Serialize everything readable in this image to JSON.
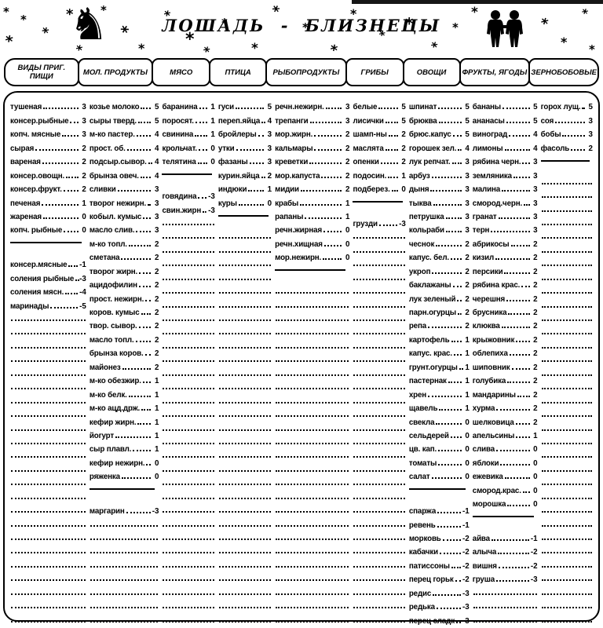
{
  "title": "ЛОШАДЬ - БЛИЗНЕЦЫ",
  "decor": {
    "star_glyph": "*",
    "horse_glyph": "♞"
  },
  "total_rows": 38,
  "columns": [
    {
      "header": "ВИДЫ ПРИГ. ПИЩИ",
      "rows": [
        {
          "name": "тушеная",
          "value": "3"
        },
        {
          "name": "консер.рыбные",
          "value": "3"
        },
        {
          "name": "копч. мясные",
          "value": "3"
        },
        {
          "name": "сырая",
          "value": "2"
        },
        {
          "name": "вареная",
          "value": "2"
        },
        {
          "name": "консер.овощн.",
          "value": "2"
        },
        {
          "name": "консер.фрукт.",
          "value": "2"
        },
        {
          "name": "печеная",
          "value": "1"
        },
        {
          "name": "жареная",
          "value": "0"
        },
        {
          "name": "копч. рыбные",
          "value": "0"
        },
        {
          "divider": true
        },
        {
          "name": "консер.мясные",
          "value": "-1"
        },
        {
          "name": "соления рыбные",
          "value": "-3"
        },
        {
          "name": "соления мясн.",
          "value": "-4"
        },
        {
          "name": "маринады",
          "value": "-5"
        }
      ]
    },
    {
      "header": "МОЛ. ПРОДУКТЫ",
      "rows": [
        {
          "name": "козье молоко",
          "value": "5"
        },
        {
          "name": "сыры тверд.",
          "value": "5"
        },
        {
          "name": "м-ко пастер.",
          "value": "4"
        },
        {
          "name": "прост. об.",
          "value": "4"
        },
        {
          "name": "подсыр.сывор.",
          "value": "4"
        },
        {
          "name": "брынза овеч.",
          "value": "4"
        },
        {
          "name": "сливки",
          "value": "3"
        },
        {
          "name": "творог нежирн.",
          "value": "3"
        },
        {
          "name": "кобыл. кумыс",
          "value": "3"
        },
        {
          "name": "масло слив.",
          "value": "3"
        },
        {
          "name": "м-ко топл.",
          "value": "2"
        },
        {
          "name": "сметана",
          "value": "2"
        },
        {
          "name": "творог жирн.",
          "value": "2"
        },
        {
          "name": "ацидофилин",
          "value": "2"
        },
        {
          "name": "прост. нежирн.",
          "value": "2"
        },
        {
          "name": "коров. кумыс",
          "value": "2"
        },
        {
          "name": "твор. сывор.",
          "value": "2"
        },
        {
          "name": "масло топл.",
          "value": "2"
        },
        {
          "name": "брынза коров.",
          "value": "2"
        },
        {
          "name": "майонез",
          "value": "2"
        },
        {
          "name": "м-ко обезжир.",
          "value": "1"
        },
        {
          "name": "м-ко белк.",
          "value": "1"
        },
        {
          "name": "м-ко ацд.држ.",
          "value": "1"
        },
        {
          "name": "кефир жирн.",
          "value": "1"
        },
        {
          "name": "йогурт",
          "value": "1"
        },
        {
          "name": "сыр плавл.",
          "value": "1"
        },
        {
          "name": "кефир нежирн.",
          "value": "0"
        },
        {
          "name": "ряженка",
          "value": "0"
        },
        {
          "divider": true
        },
        {
          "name": "маргарин",
          "value": "-3"
        }
      ]
    },
    {
      "header": "МЯСО",
      "rows": [
        {
          "name": "баранина",
          "value": "1"
        },
        {
          "name": "поросят.",
          "value": "1"
        },
        {
          "name": "свинина",
          "value": "1"
        },
        {
          "name": "крольчат.",
          "value": "0"
        },
        {
          "name": "телятина",
          "value": "0"
        },
        {
          "divider": true
        },
        {
          "name": "говядина",
          "value": "-3"
        },
        {
          "name": "свин.жирн",
          "value": "-3"
        }
      ]
    },
    {
      "header": "ПТИЦА",
      "rows": [
        {
          "name": "гуси",
          "value": "5"
        },
        {
          "name": "переп.яйца",
          "value": "4"
        },
        {
          "name": "бройлеры",
          "value": "3"
        },
        {
          "name": "утки",
          "value": "3"
        },
        {
          "name": "фазаны",
          "value": "3"
        },
        {
          "name": "курин.яйца",
          "value": "2"
        },
        {
          "name": "индюки",
          "value": "1"
        },
        {
          "name": "куры",
          "value": "0"
        },
        {
          "divider": true
        }
      ]
    },
    {
      "header": "РЫБОПРОДУКТЫ",
      "rows": [
        {
          "name": "речн.нежирн.",
          "value": "3"
        },
        {
          "name": "трепанги",
          "value": "3"
        },
        {
          "name": "мор.жирн.",
          "value": "2"
        },
        {
          "name": "кальмары",
          "value": "2"
        },
        {
          "name": "креветки",
          "value": "2"
        },
        {
          "name": "мор.капуста",
          "value": "2"
        },
        {
          "name": "мидии",
          "value": "2"
        },
        {
          "name": "крабы",
          "value": "1"
        },
        {
          "name": "рапаны",
          "value": "1"
        },
        {
          "name": "речн.жирная",
          "value": "0"
        },
        {
          "name": "речн.хищная",
          "value": "0"
        },
        {
          "name": "мор.нежирн.",
          "value": "0"
        },
        {
          "divider": true
        }
      ]
    },
    {
      "header": "ГРИБЫ",
      "rows": [
        {
          "name": "белые",
          "value": "5"
        },
        {
          "name": "лисички",
          "value": "5"
        },
        {
          "name": "шамп-ны",
          "value": "2"
        },
        {
          "name": "маслята",
          "value": "2"
        },
        {
          "name": "опенки",
          "value": "2"
        },
        {
          "name": "подосин.",
          "value": "1"
        },
        {
          "name": "подберез.",
          "value": "0"
        },
        {
          "divider": true
        },
        {
          "name": "грузди",
          "value": "-3"
        }
      ]
    },
    {
      "header": "ОВОЩИ",
      "rows": [
        {
          "name": "шпинат",
          "value": "5"
        },
        {
          "name": "брюква",
          "value": "5"
        },
        {
          "name": "брюс.капус",
          "value": "5"
        },
        {
          "name": "горошек зел.",
          "value": "4"
        },
        {
          "name": "лук репчат.",
          "value": "3"
        },
        {
          "name": "арбуз",
          "value": "3"
        },
        {
          "name": "дыня",
          "value": "3"
        },
        {
          "name": "тыква",
          "value": "3"
        },
        {
          "name": "петрушка",
          "value": "3"
        },
        {
          "name": "кольраби",
          "value": "3"
        },
        {
          "name": "чеснок",
          "value": "2"
        },
        {
          "name": "капус. бел.",
          "value": "2"
        },
        {
          "name": "укроп",
          "value": "2"
        },
        {
          "name": "баклажаны",
          "value": "2"
        },
        {
          "name": "лук зеленый",
          "value": "2"
        },
        {
          "name": "парн.огурцы",
          "value": "2"
        },
        {
          "name": "репа",
          "value": "2"
        },
        {
          "name": "картофель",
          "value": "1"
        },
        {
          "name": "капус. крас.",
          "value": "1"
        },
        {
          "name": "грунт.огурцы",
          "value": "1"
        },
        {
          "name": "пастернак",
          "value": "1"
        },
        {
          "name": "хрен",
          "value": "1"
        },
        {
          "name": "щавель",
          "value": "1"
        },
        {
          "name": "свекла",
          "value": "0"
        },
        {
          "name": "сельдерей",
          "value": "0"
        },
        {
          "name": "цв. кап.",
          "value": "0"
        },
        {
          "name": "томаты",
          "value": "0"
        },
        {
          "name": "салат",
          "value": "0"
        },
        {
          "divider": true
        },
        {
          "name": "спаржа",
          "value": "-1"
        },
        {
          "name": "ревень",
          "value": "-1"
        },
        {
          "name": "морковь",
          "value": "-2"
        },
        {
          "name": "кабачки",
          "value": "-2"
        },
        {
          "name": "патиссоны",
          "value": "-2"
        },
        {
          "name": "перец горьк",
          "value": "-2"
        },
        {
          "name": "редис",
          "value": "-3"
        },
        {
          "name": "редька",
          "value": "-3"
        },
        {
          "name": "перец сладк",
          "value": "-3"
        }
      ]
    },
    {
      "header": "ФРУКТЫ, ЯГОДЫ",
      "rows": [
        {
          "name": "бананы",
          "value": "5"
        },
        {
          "name": "ананасы",
          "value": "5"
        },
        {
          "name": "виноград",
          "value": "4"
        },
        {
          "name": "лимоны",
          "value": "4"
        },
        {
          "name": "рябина черн.",
          "value": "3"
        },
        {
          "name": "земляника",
          "value": "3"
        },
        {
          "name": "малина",
          "value": "3"
        },
        {
          "name": "смород.черн.",
          "value": "3"
        },
        {
          "name": "гранат",
          "value": "3"
        },
        {
          "name": "терн",
          "value": "3"
        },
        {
          "name": "абрикосы",
          "value": "2"
        },
        {
          "name": "кизил",
          "value": "2"
        },
        {
          "name": "персики",
          "value": "2"
        },
        {
          "name": "рябина крас.",
          "value": "2"
        },
        {
          "name": "черешня",
          "value": "2"
        },
        {
          "name": "брусника",
          "value": "2"
        },
        {
          "name": "клюква",
          "value": "2"
        },
        {
          "name": "крыжовник",
          "value": "2"
        },
        {
          "name": "облепиха",
          "value": "2"
        },
        {
          "name": "шиповник",
          "value": "2"
        },
        {
          "name": "голубика",
          "value": "2"
        },
        {
          "name": "мандарины",
          "value": "2"
        },
        {
          "name": "хурма",
          "value": "2"
        },
        {
          "name": "шелковица",
          "value": "2"
        },
        {
          "name": "апельсины",
          "value": "1"
        },
        {
          "name": "слива",
          "value": "0"
        },
        {
          "name": "яблоки",
          "value": "0"
        },
        {
          "name": "ежевика",
          "value": "0"
        },
        {
          "name": "смород.крас.",
          "value": "0"
        },
        {
          "name": "морошка",
          "value": "0"
        },
        {
          "divider": true
        },
        {
          "name": "айва",
          "value": "-1"
        },
        {
          "name": "алыча",
          "value": "-2"
        },
        {
          "name": "вишня",
          "value": "-2"
        },
        {
          "name": "груша",
          "value": "-3"
        }
      ]
    },
    {
      "header": "ЗЕРНОБОБОВЫЕ",
      "rows": [
        {
          "name": "горох лущ.",
          "value": "5"
        },
        {
          "name": "соя",
          "value": "3"
        },
        {
          "name": "бобы",
          "value": "3"
        },
        {
          "name": "фасоль",
          "value": "2"
        },
        {
          "divider": true
        }
      ]
    }
  ]
}
